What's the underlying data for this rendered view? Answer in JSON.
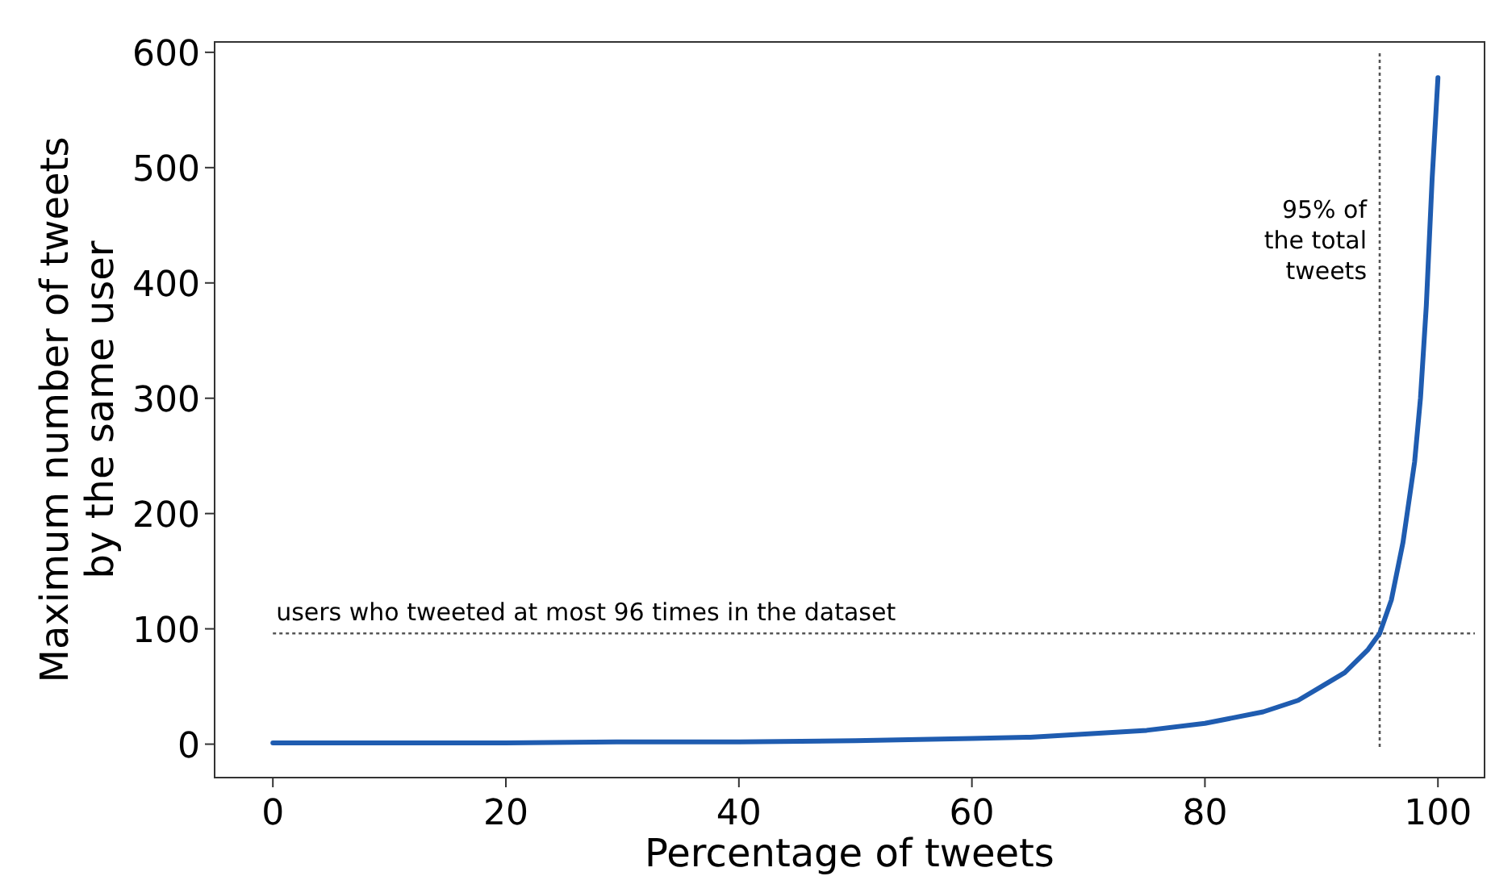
{
  "chart_data": {
    "type": "line",
    "xlabel": "Percentage of tweets",
    "ylabel": "Maximum number of tweets\nby the same user",
    "x": [
      0,
      10,
      20,
      30,
      40,
      50,
      60,
      65,
      70,
      75,
      80,
      85,
      88,
      90,
      92,
      93,
      94,
      95,
      96,
      97,
      97.5,
      98,
      98.5,
      99,
      99.5,
      100
    ],
    "series": [
      {
        "color": "#1f5cb0",
        "values": [
          1,
          1,
          1,
          2,
          2,
          3,
          5,
          6,
          9,
          12,
          18,
          28,
          38,
          50,
          62,
          72,
          82,
          96,
          125,
          175,
          210,
          245,
          300,
          380,
          490,
          578
        ]
      }
    ],
    "xlim": [
      -5,
      104
    ],
    "ylim": [
      -29,
      609
    ],
    "xticks": [
      0,
      20,
      40,
      60,
      80,
      100
    ],
    "yticks": [
      0,
      100,
      200,
      300,
      400,
      500,
      600
    ],
    "ref_lines": [
      {
        "axis": "y",
        "value": 96,
        "label": "users who tweeted at most 96 times in the dataset",
        "color": "#555555",
        "line_style": "dotted"
      },
      {
        "axis": "x",
        "value": 95,
        "label": "95% of\nthe total\ntweets",
        "color": "#555555",
        "line_style": "dotted"
      }
    ],
    "grid": false,
    "marker": "none",
    "line_style": "solid"
  }
}
